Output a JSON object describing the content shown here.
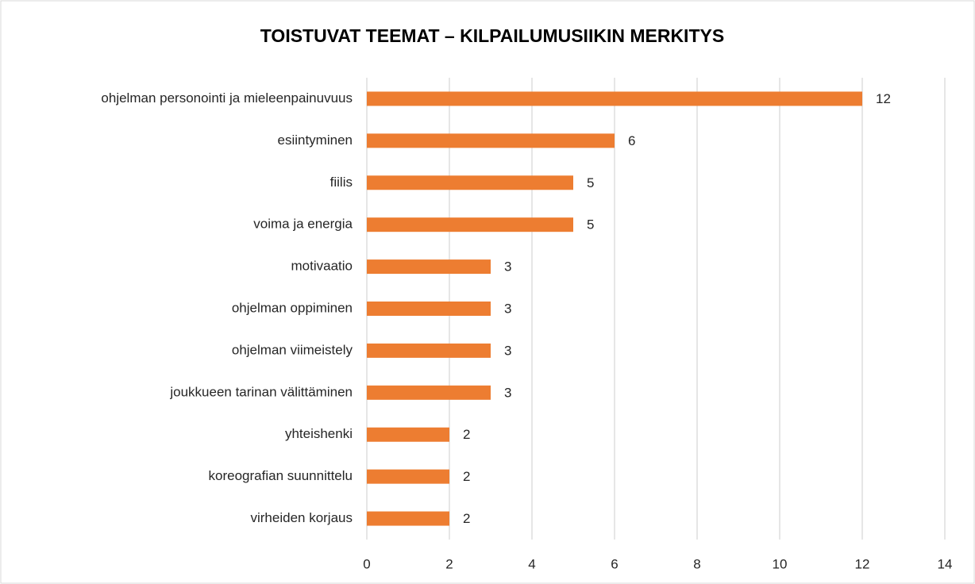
{
  "chart_data": {
    "type": "bar",
    "horizontal": true,
    "title": "TOISTUVAT TEEMAT – KILPAILUMUSIIKIN MERKITYS",
    "categories": [
      "ohjelman personointi ja mieleenpainuvuus",
      "esiintyminen",
      "fiilis",
      "voima ja energia",
      "motivaatio",
      "ohjelman oppiminen",
      "ohjelman viimeistely",
      "joukkueen tarinan välittäminen",
      "yhteishenki",
      "koreografian suunnittelu",
      "virheiden korjaus"
    ],
    "values": [
      12,
      6,
      5,
      5,
      3,
      3,
      3,
      3,
      2,
      2,
      2
    ],
    "color": "#ed7d31",
    "xlim": [
      0,
      14
    ],
    "xticks": [
      0,
      2,
      4,
      6,
      8,
      10,
      12,
      14
    ],
    "grid": true
  }
}
